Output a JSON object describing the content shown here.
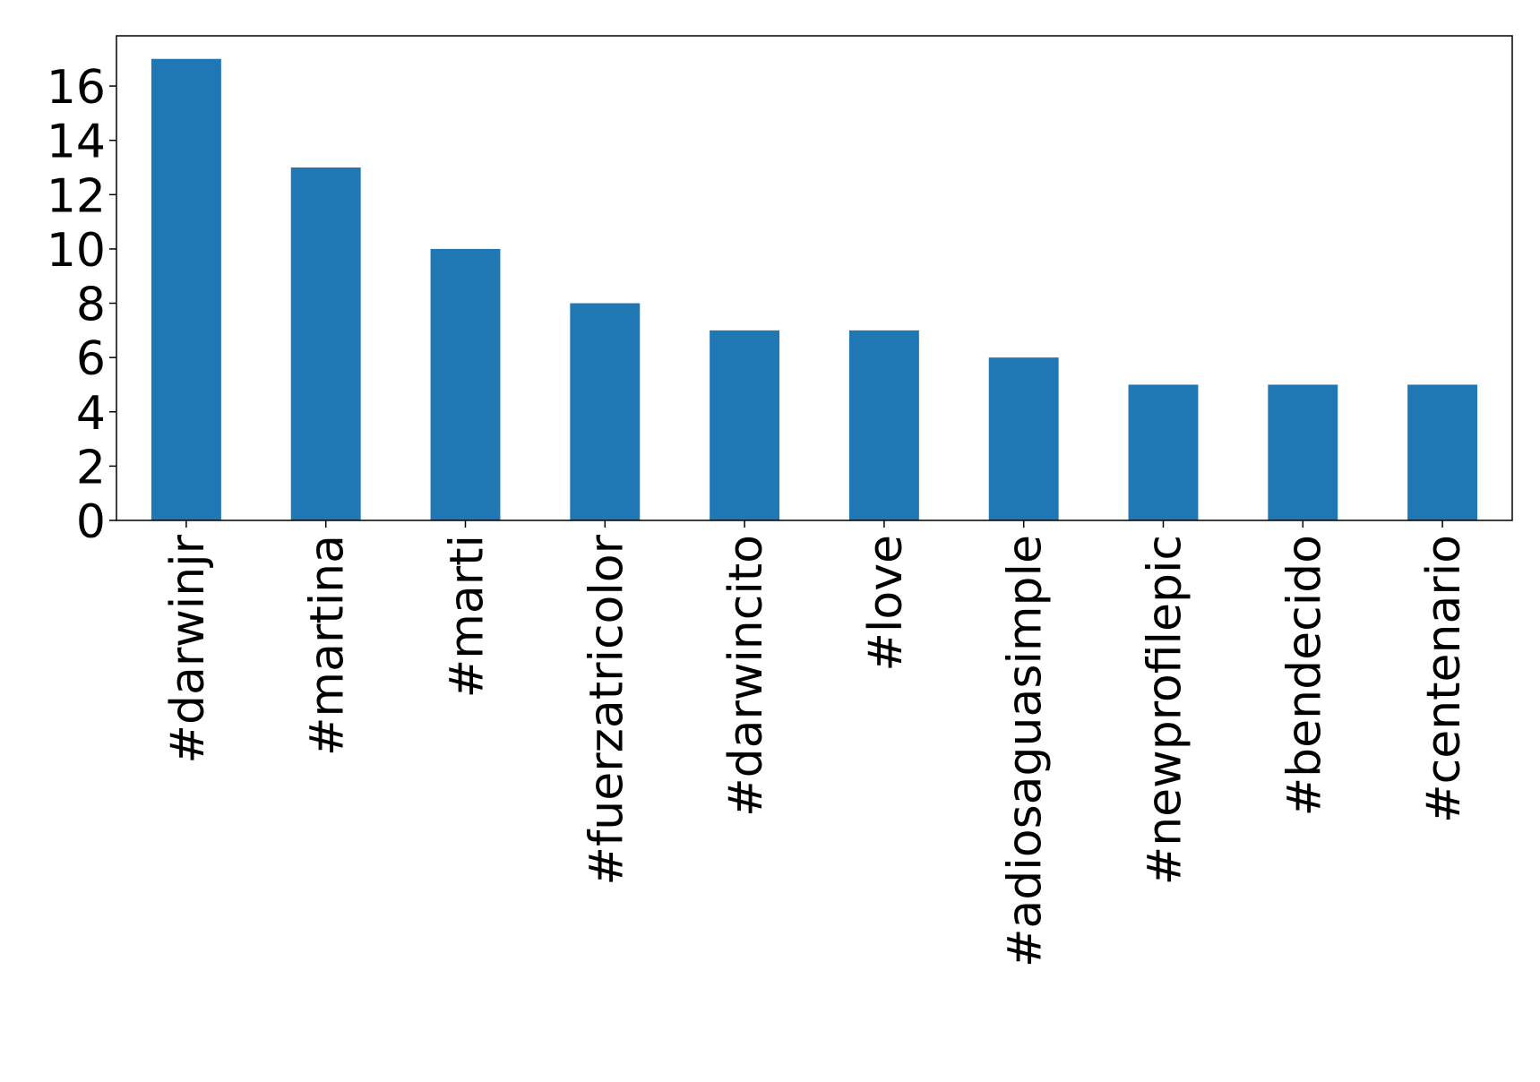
{
  "chart_data": {
    "type": "bar",
    "categories": [
      "#darwinjr",
      "#martina",
      "#marti",
      "#fuerzatricolor",
      "#darwincito",
      "#love",
      "#adiosaguasimple",
      "#newprofilepic",
      "#bendecido",
      "#centenario"
    ],
    "values": [
      17,
      13,
      10,
      8,
      7,
      7,
      6,
      5,
      5,
      5
    ],
    "color": "#1f77b4",
    "ylim": [
      0,
      17.85
    ],
    "yticks": [
      0,
      2,
      4,
      6,
      8,
      10,
      12,
      14,
      16
    ],
    "grid": false
  }
}
